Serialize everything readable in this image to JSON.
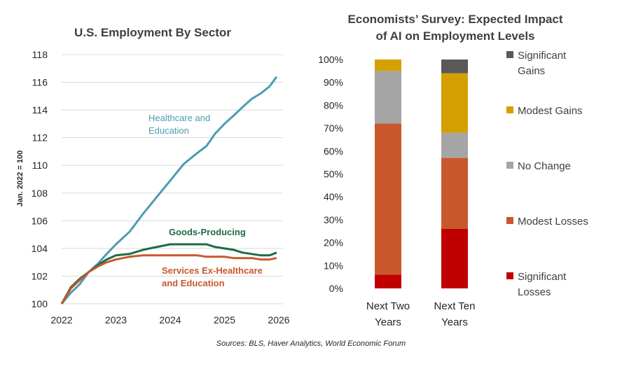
{
  "chart_data": [
    {
      "type": "line",
      "title": "U.S. Employment By Sector",
      "ylabel": "Jan. 2022 = 100",
      "xlim": [
        2022,
        2026
      ],
      "ylim": [
        100,
        118
      ],
      "x_ticks": [
        2022,
        2023,
        2024,
        2025,
        2026
      ],
      "y_ticks": [
        100,
        102,
        104,
        106,
        108,
        110,
        112,
        114,
        116,
        118
      ],
      "grid": "horizontal",
      "series": [
        {
          "name": "Healthcare and Education",
          "color": "#4e9bb3",
          "x": [
            2022.0,
            2022.17,
            2022.33,
            2022.5,
            2022.67,
            2022.83,
            2023.0,
            2023.25,
            2023.5,
            2023.75,
            2024.0,
            2024.25,
            2024.5,
            2024.67,
            2024.83,
            2025.0,
            2025.17,
            2025.33,
            2025.5,
            2025.67,
            2025.83,
            2025.96
          ],
          "y": [
            100.0,
            100.8,
            101.4,
            102.3,
            102.9,
            103.6,
            104.3,
            105.2,
            106.5,
            107.7,
            108.9,
            110.1,
            110.9,
            111.4,
            112.3,
            113.0,
            113.6,
            114.2,
            114.8,
            115.2,
            115.7,
            116.4
          ]
        },
        {
          "name": "Goods-Producing",
          "color": "#1e6b45",
          "x": [
            2022.0,
            2022.17,
            2022.33,
            2022.5,
            2022.67,
            2022.83,
            2023.0,
            2023.25,
            2023.5,
            2023.75,
            2024.0,
            2024.25,
            2024.5,
            2024.67,
            2024.83,
            2025.0,
            2025.17,
            2025.33,
            2025.5,
            2025.67,
            2025.83,
            2025.96
          ],
          "y": [
            100.0,
            101.2,
            101.8,
            102.3,
            102.8,
            103.2,
            103.5,
            103.6,
            103.9,
            104.1,
            104.3,
            104.3,
            104.3,
            104.3,
            104.1,
            104.0,
            103.9,
            103.7,
            103.6,
            103.5,
            103.5,
            103.7
          ]
        },
        {
          "name": "Services Ex-Healthcare and Education",
          "color": "#c8582b",
          "x": [
            2022.0,
            2022.17,
            2022.33,
            2022.5,
            2022.67,
            2022.83,
            2023.0,
            2023.25,
            2023.5,
            2023.75,
            2024.0,
            2024.25,
            2024.5,
            2024.67,
            2024.83,
            2025.0,
            2025.17,
            2025.33,
            2025.5,
            2025.67,
            2025.83,
            2025.96
          ],
          "y": [
            100.0,
            101.1,
            101.7,
            102.3,
            102.7,
            103.0,
            103.2,
            103.4,
            103.5,
            103.5,
            103.5,
            103.5,
            103.5,
            103.4,
            103.4,
            103.4,
            103.3,
            103.3,
            103.3,
            103.2,
            103.2,
            103.3
          ]
        }
      ]
    },
    {
      "type": "bar",
      "stacked": true,
      "title": "Economists’ Survey: Expected Impact of AI on Employment Levels",
      "title_lines": [
        "Economists’ Survey: Expected Impact",
        "of AI on Employment Levels"
      ],
      "categories": [
        "Next Two Years",
        "Next Ten Years"
      ],
      "category_lines": [
        [
          "Next Two",
          "Years"
        ],
        [
          "Next Ten",
          "Years"
        ]
      ],
      "ylim": [
        0,
        100
      ],
      "y_ticks": [
        0,
        10,
        20,
        30,
        40,
        50,
        60,
        70,
        80,
        90,
        100
      ],
      "y_tick_labels": [
        "0%",
        "10%",
        "20%",
        "30%",
        "40%",
        "50%",
        "60%",
        "70%",
        "80%",
        "90%",
        "100%"
      ],
      "legend_position": "right",
      "series": [
        {
          "name": "Significant Losses",
          "legend_lines": [
            "Significant",
            "Losses"
          ],
          "color": "#c00000",
          "values": [
            6,
            26
          ]
        },
        {
          "name": "Modest Losses",
          "legend_lines": [
            "Modest Losses"
          ],
          "color": "#c8582b",
          "values": [
            66,
            31
          ]
        },
        {
          "name": "No Change",
          "legend_lines": [
            "No Change"
          ],
          "color": "#a5a5a5",
          "values": [
            23,
            11
          ]
        },
        {
          "name": "Modest Gains",
          "legend_lines": [
            "Modest Gains"
          ],
          "color": "#d4a000",
          "values": [
            5,
            26
          ]
        },
        {
          "name": "Significant Gains",
          "legend_lines": [
            "Significant",
            "Gains"
          ],
          "color": "#595959",
          "values": [
            0,
            6
          ]
        }
      ]
    }
  ],
  "source": "Sources: BLS, Haver Analytics, World Economic Forum"
}
